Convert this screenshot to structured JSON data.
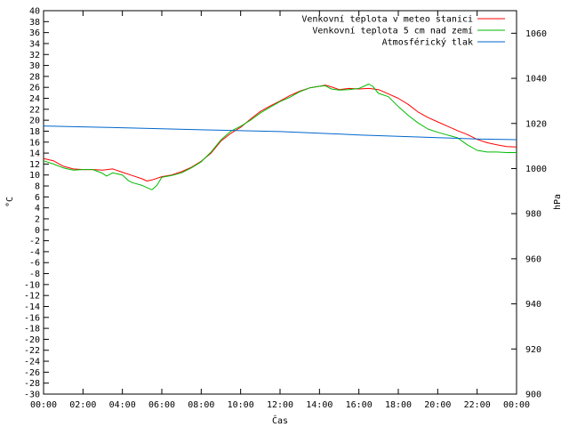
{
  "chart_data": {
    "type": "line",
    "xlabel": "Čas",
    "ylabel": "°C",
    "y2label": "hPa",
    "x_ticks": [
      "00:00",
      "02:00",
      "04:00",
      "06:00",
      "08:00",
      "10:00",
      "12:00",
      "14:00",
      "16:00",
      "18:00",
      "20:00",
      "22:00",
      "00:00"
    ],
    "xlim_hours": [
      0,
      24
    ],
    "ylim": [
      -30,
      40
    ],
    "y_ticks": [
      -30,
      -28,
      -26,
      -24,
      -22,
      -20,
      -18,
      -16,
      -14,
      -12,
      -10,
      -8,
      -6,
      -4,
      -2,
      0,
      2,
      4,
      6,
      8,
      10,
      12,
      14,
      16,
      18,
      20,
      22,
      24,
      26,
      28,
      30,
      32,
      34,
      36,
      38,
      40
    ],
    "y2lim": [
      900,
      1070
    ],
    "y2_ticks": [
      900,
      920,
      940,
      960,
      980,
      1000,
      1020,
      1040,
      1060
    ],
    "legend_position": "top-right",
    "grid": false,
    "series": [
      {
        "name": "Venkovní teplota v meteo stanici",
        "color": "#ff0000",
        "axis": "left",
        "x": [
          0,
          0.5,
          1,
          1.5,
          2,
          2.5,
          3,
          3.5,
          4,
          4.5,
          5,
          5.25,
          5.5,
          6,
          6.5,
          7,
          7.5,
          8,
          8.5,
          9,
          9.5,
          10,
          10.5,
          11,
          11.5,
          12,
          12.5,
          13,
          13.5,
          14,
          14.3,
          14.6,
          15,
          15.5,
          16,
          16.5,
          17,
          17.5,
          18,
          18.5,
          19,
          19.5,
          20,
          20.5,
          21,
          21.5,
          22,
          22.5,
          23,
          23.5,
          24
        ],
        "values": [
          13,
          12.6,
          11.6,
          11.1,
          11,
          11,
          10.9,
          11.1,
          10.5,
          9.9,
          9.3,
          8.9,
          9.1,
          9.7,
          10,
          10.6,
          11.4,
          12.5,
          14,
          16.2,
          17.6,
          18.7,
          20.2,
          21.6,
          22.6,
          23.5,
          24.5,
          25.3,
          25.9,
          26.2,
          26.4,
          26.1,
          25.6,
          25.8,
          25.7,
          25.8,
          25.6,
          24.8,
          24,
          22.9,
          21.5,
          20.5,
          19.7,
          18.9,
          18.1,
          17.4,
          16.5,
          15.9,
          15.5,
          15.2,
          15.1
        ]
      },
      {
        "name": "Venkovní teplota 5 cm nad zemí",
        "color": "#00bb00",
        "axis": "left",
        "x": [
          0,
          0.5,
          1,
          1.5,
          2,
          2.5,
          3,
          3.2,
          3.5,
          4,
          4.3,
          4.5,
          5,
          5.5,
          5.75,
          6,
          6.5,
          7,
          7.5,
          8,
          8.5,
          9,
          9.5,
          10,
          10.5,
          11,
          11.5,
          12,
          12.5,
          13,
          13.5,
          14,
          14.3,
          14.6,
          15,
          15.5,
          16,
          16.5,
          16.7,
          17,
          17.5,
          18,
          18.5,
          19,
          19.5,
          20,
          20.5,
          21,
          21.5,
          22,
          22.5,
          23,
          23.5,
          24
        ],
        "values": [
          12.6,
          12,
          11.3,
          10.9,
          11,
          11,
          10.3,
          9.8,
          10.4,
          10,
          9,
          8.6,
          8.1,
          7.3,
          8.1,
          9.6,
          9.9,
          10.4,
          11.3,
          12.4,
          14.2,
          16.4,
          18,
          18.9,
          20,
          21.3,
          22.4,
          23.4,
          24.2,
          25.2,
          25.9,
          26.2,
          26.3,
          25.7,
          25.5,
          25.6,
          25.8,
          26.6,
          26.2,
          24.9,
          24.3,
          22.5,
          20.9,
          19.5,
          18.4,
          17.8,
          17.3,
          16.8,
          15.5,
          14.5,
          14.2,
          14.2,
          14.1,
          14.1
        ]
      },
      {
        "name": "Atmosférický tlak",
        "color": "#0066cc",
        "axis": "right",
        "x": [
          0,
          2,
          4,
          6,
          8,
          10,
          12,
          14,
          16,
          18,
          20,
          22,
          24
        ],
        "values": [
          1018.9,
          1018.5,
          1018.1,
          1017.6,
          1017.2,
          1016.8,
          1016.4,
          1015.7,
          1014.9,
          1014.3,
          1013.7,
          1013.1,
          1012.8
        ]
      }
    ]
  }
}
